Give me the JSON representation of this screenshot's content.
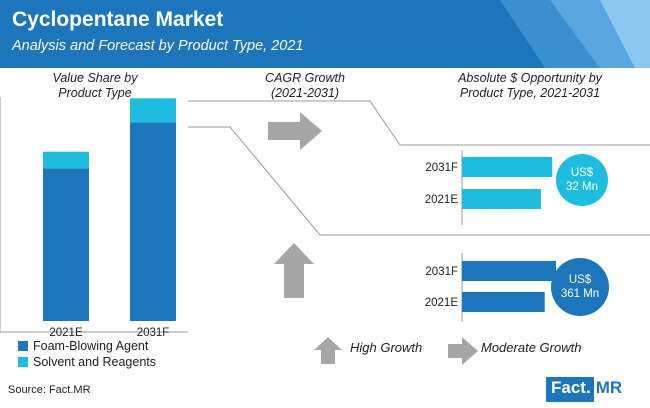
{
  "header": {
    "title": "Cyclopentane Market",
    "subtitle": "Analysis and Forecast by Product Type, 2021"
  },
  "sections": {
    "value_share": [
      "Value Share by",
      "Product Type"
    ],
    "cagr": [
      "CAGR Growth",
      "(2021-2031)"
    ],
    "absolute": [
      "Absolute $ Opportunity by",
      "Product Type, 2021-2031"
    ]
  },
  "colors": {
    "primary": "#1d76bb",
    "secondary": "#1ebde0",
    "arrow": "#a6a6a6",
    "banner": "#1d76bb"
  },
  "chart_data": [
    {
      "type": "bar",
      "stacked": true,
      "categories": [
        "2021E",
        "2031F"
      ],
      "series": [
        {
          "name": "Foam-Blowing Agent",
          "values": [
            83,
            108
          ]
        },
        {
          "name": "Solvent and Reagents",
          "values": [
            9,
            13
          ]
        }
      ],
      "legend_position": "bottom-left"
    },
    {
      "type": "bar",
      "orientation": "horizontal",
      "categories": [
        "2031F",
        "2021E"
      ],
      "values": [
        96,
        84
      ],
      "color": "#1ebde0",
      "bubble": [
        "US$",
        "32 Mn"
      ]
    },
    {
      "type": "bar",
      "orientation": "horizontal",
      "categories": [
        "2031F",
        "2021E"
      ],
      "values": [
        100,
        88
      ],
      "color": "#1d76bb",
      "bubble": [
        "US$",
        "361 Mn"
      ]
    }
  ],
  "bottom_legend": {
    "high": "High Growth",
    "moderate": "Moderate Growth"
  },
  "source": "Source: Fact.MR",
  "logo": {
    "part1": "Fact.",
    "part2": "MR"
  }
}
